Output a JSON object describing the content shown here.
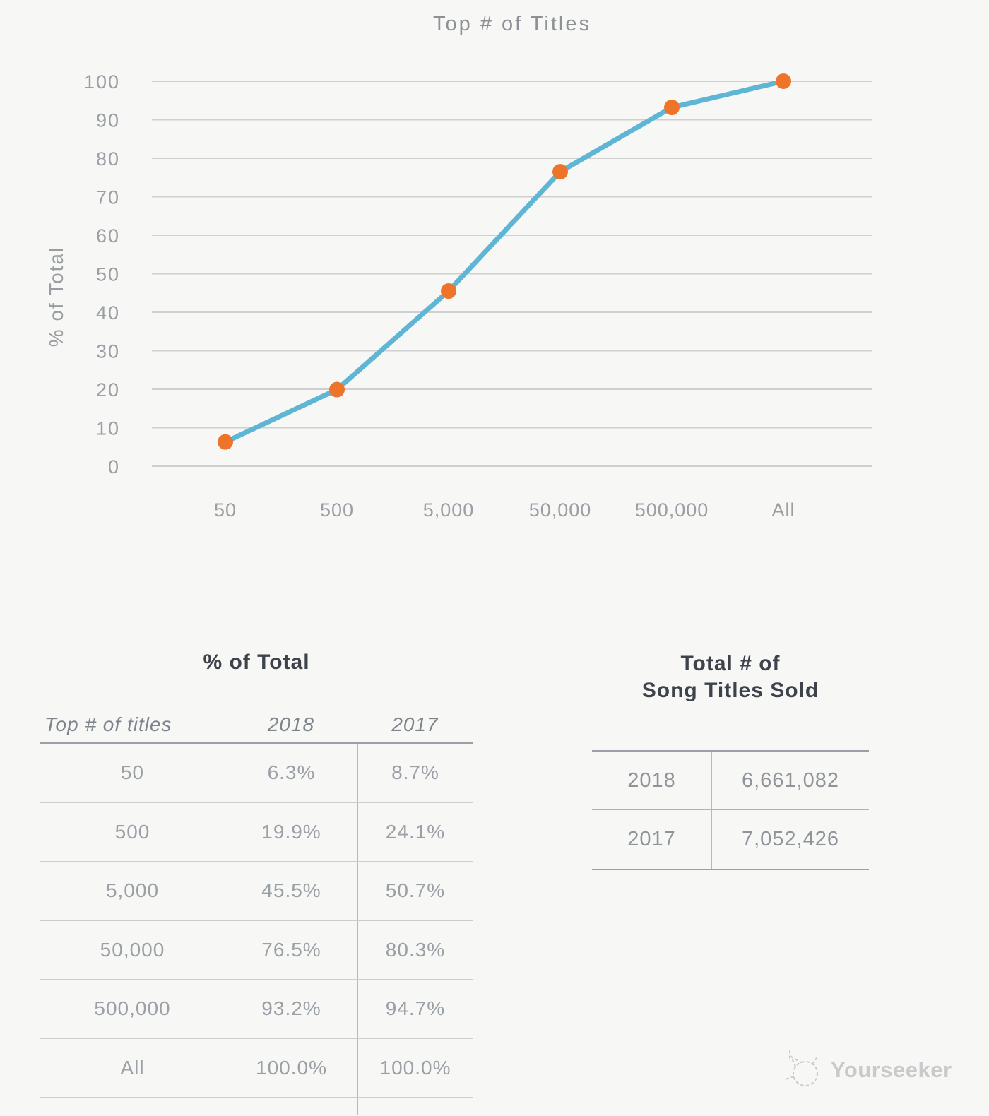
{
  "page": {
    "background": "#f7f7f6",
    "watermark": {
      "brand": "Yourseeker",
      "icon": "cat-sketch-icon"
    }
  },
  "chart_data": {
    "type": "line",
    "title": "Top # of Titles",
    "xlabel": "",
    "ylabel": "% of Total",
    "categories": [
      "50",
      "500",
      "5,000",
      "50,000",
      "500,000",
      "All"
    ],
    "series": [
      {
        "name": "2018 % of total",
        "values": [
          6.3,
          19.9,
          45.5,
          76.5,
          93.2,
          100.0
        ]
      }
    ],
    "ylim": [
      0,
      100
    ],
    "yticks": [
      0,
      10,
      20,
      30,
      40,
      50,
      60,
      70,
      80,
      90,
      100
    ],
    "grid": true,
    "legend_position": "none",
    "colors": {
      "line": "#5fb6d4",
      "marker": "#ee742a",
      "grid": "#cfcfcf",
      "ticks": "#9b9fa4",
      "title": "#8d9196"
    }
  },
  "tables": {
    "left": {
      "title": "% of Total",
      "columns": [
        "Top # of titles",
        "2018",
        "2017"
      ],
      "rows": [
        {
          "label": "50",
          "y2018": "6.3%",
          "y2017": "8.7%"
        },
        {
          "label": "500",
          "y2018": "19.9%",
          "y2017": "24.1%"
        },
        {
          "label": "5,000",
          "y2018": "45.5%",
          "y2017": "50.7%"
        },
        {
          "label": "50,000",
          "y2018": "76.5%",
          "y2017": "80.3%"
        },
        {
          "label": "500,000",
          "y2018": "93.2%",
          "y2017": "94.7%"
        },
        {
          "label": "All",
          "y2018": "100.0%",
          "y2017": "100.0%"
        }
      ]
    },
    "right": {
      "title_line1": "Total # of",
      "title_line2": "Song Titles Sold",
      "rows": [
        {
          "year": "2018",
          "total": "6,661,082"
        },
        {
          "year": "2017",
          "total": "7,052,426"
        }
      ]
    }
  }
}
